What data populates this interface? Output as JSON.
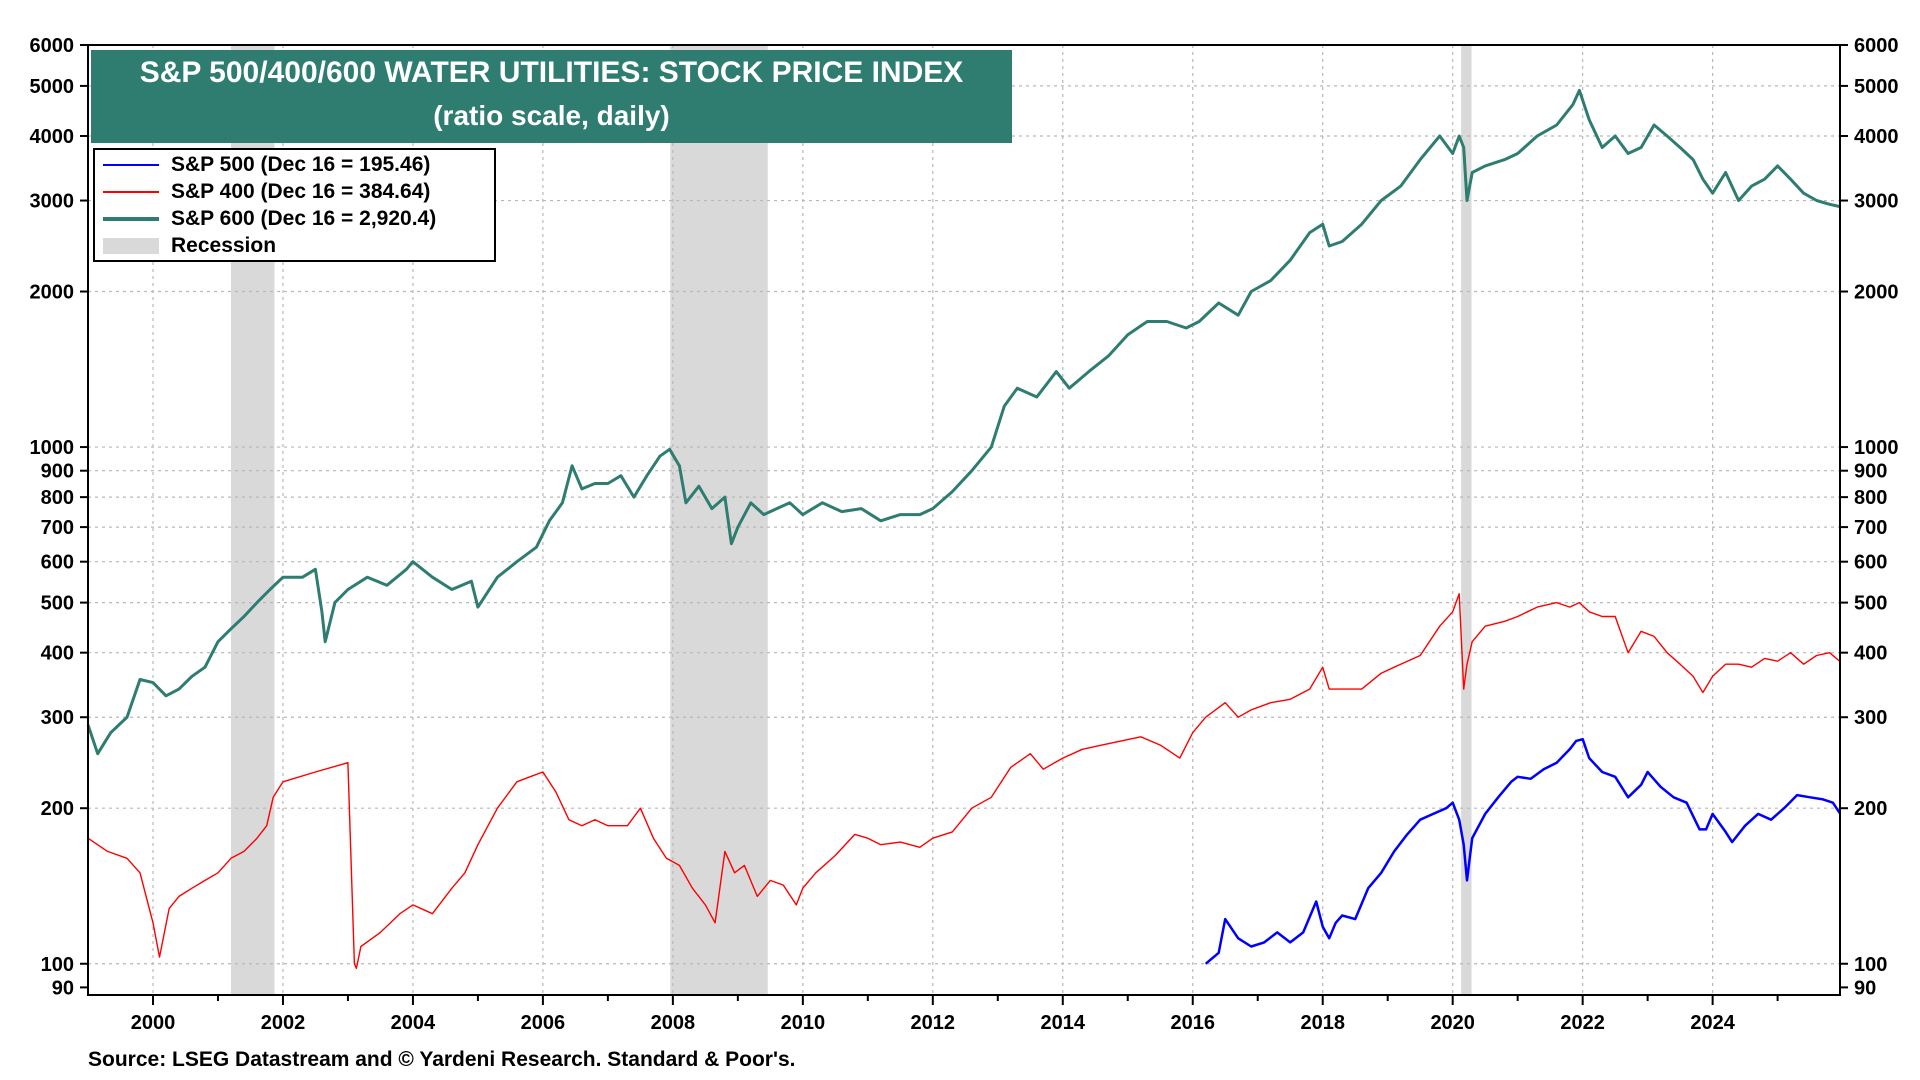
{
  "header": {
    "title": "S&P 500/400/600 WATER UTILITIES: STOCK PRICE INDEX",
    "subtitle": "(ratio scale, daily)"
  },
  "legend": {
    "items": [
      {
        "label": "S&P 500 (Dec 16 = 195.46)",
        "color": "#0000ff"
      },
      {
        "label": "S&P 400 (Dec 16 = 384.64)",
        "color": "#ff0000"
      },
      {
        "label": "S&P 600 (Dec 16 = 2,920.4)",
        "color": "#2e7d70"
      },
      {
        "label": "Recession",
        "color": "#d9d9d9"
      }
    ]
  },
  "footer": {
    "source": "Source: LSEG Datastream and © Yardeni Research. Standard & Poor's."
  },
  "chart_data": {
    "type": "line",
    "title": "S&P 500/400/600 WATER UTILITIES: STOCK PRICE INDEX",
    "subtitle": "(ratio scale, daily)",
    "y_scale": "log",
    "xlim": [
      1999.0,
      2025.96
    ],
    "ylim": [
      87,
      6000
    ],
    "x_ticks": [
      2000,
      2002,
      2004,
      2006,
      2008,
      2010,
      2012,
      2014,
      2016,
      2018,
      2020,
      2022,
      2024
    ],
    "y_ticks": [
      90,
      100,
      200,
      300,
      400,
      500,
      600,
      700,
      800,
      900,
      1000,
      2000,
      3000,
      4000,
      5000,
      6000
    ],
    "recessions": [
      [
        2001.2,
        2001.87
      ],
      [
        2007.96,
        2009.46
      ],
      [
        2020.13,
        2020.29
      ]
    ],
    "series": [
      {
        "name": "S&P 500",
        "color": "#0000ff",
        "stroke_width": 2.5,
        "x": [
          2016.2,
          2016.4,
          2016.5,
          2016.7,
          2016.9,
          2017.1,
          2017.3,
          2017.5,
          2017.7,
          2017.9,
          2018.0,
          2018.1,
          2018.2,
          2018.3,
          2018.5,
          2018.7,
          2018.9,
          2019.1,
          2019.3,
          2019.5,
          2019.7,
          2019.9,
          2020.0,
          2020.1,
          2020.17,
          2020.22,
          2020.3,
          2020.5,
          2020.7,
          2020.9,
          2021.0,
          2021.2,
          2021.4,
          2021.6,
          2021.8,
          2021.9,
          2022.0,
          2022.1,
          2022.3,
          2022.5,
          2022.7,
          2022.9,
          2023.0,
          2023.2,
          2023.4,
          2023.6,
          2023.8,
          2023.9,
          2024.0,
          2024.2,
          2024.3,
          2024.5,
          2024.7,
          2024.9,
          2025.1,
          2025.3,
          2025.5,
          2025.7,
          2025.85,
          2025.96
        ],
        "y": [
          100,
          105,
          122,
          112,
          108,
          110,
          115,
          110,
          115,
          132,
          118,
          112,
          120,
          124,
          122,
          140,
          150,
          165,
          178,
          190,
          195,
          200,
          205,
          190,
          170,
          145,
          175,
          195,
          210,
          225,
          230,
          228,
          238,
          245,
          260,
          270,
          272,
          250,
          235,
          230,
          210,
          222,
          235,
          220,
          210,
          205,
          182,
          182,
          195,
          180,
          172,
          185,
          195,
          190,
          200,
          212,
          210,
          208,
          205,
          195.46
        ]
      },
      {
        "name": "S&P 400",
        "color": "#ff0000",
        "stroke_width": 1.4,
        "x": [
          1999.0,
          1999.3,
          1999.6,
          1999.8,
          2000.0,
          2000.1,
          2000.25,
          2000.4,
          2000.6,
          2000.8,
          2001.0,
          2001.2,
          2001.4,
          2001.6,
          2001.75,
          2001.85,
          2002.0,
          2002.5,
          2003.0,
          2003.1,
          2003.13,
          2003.2,
          2003.5,
          2003.8,
          2004.0,
          2004.3,
          2004.6,
          2004.8,
          2005.0,
          2005.3,
          2005.6,
          2005.8,
          2006.0,
          2006.2,
          2006.4,
          2006.6,
          2006.8,
          2007.0,
          2007.3,
          2007.5,
          2007.7,
          2007.9,
          2008.1,
          2008.3,
          2008.5,
          2008.65,
          2008.8,
          2008.95,
          2009.1,
          2009.3,
          2009.5,
          2009.7,
          2009.9,
          2010.0,
          2010.2,
          2010.5,
          2010.8,
          2011.0,
          2011.2,
          2011.5,
          2011.8,
          2012.0,
          2012.3,
          2012.6,
          2012.9,
          2013.2,
          2013.5,
          2013.7,
          2014.0,
          2014.3,
          2014.6,
          2014.9,
          2015.2,
          2015.5,
          2015.8,
          2016.0,
          2016.2,
          2016.5,
          2016.7,
          2016.9,
          2017.2,
          2017.5,
          2017.8,
          2018.0,
          2018.1,
          2018.3,
          2018.6,
          2018.9,
          2019.2,
          2019.5,
          2019.8,
          2020.0,
          2020.1,
          2020.17,
          2020.22,
          2020.3,
          2020.5,
          2020.8,
          2021.0,
          2021.3,
          2021.6,
          2021.8,
          2021.95,
          2022.1,
          2022.3,
          2022.5,
          2022.7,
          2022.9,
          2023.1,
          2023.3,
          2023.5,
          2023.7,
          2023.85,
          2024.0,
          2024.2,
          2024.4,
          2024.6,
          2024.8,
          2025.0,
          2025.2,
          2025.4,
          2025.6,
          2025.8,
          2025.96
        ],
        "y": [
          175,
          165,
          160,
          150,
          120,
          103,
          128,
          135,
          140,
          145,
          150,
          160,
          165,
          175,
          185,
          210,
          225,
          235,
          245,
          100,
          98,
          108,
          115,
          125,
          130,
          125,
          140,
          150,
          170,
          200,
          225,
          230,
          235,
          215,
          190,
          185,
          190,
          185,
          185,
          200,
          175,
          160,
          155,
          140,
          130,
          120,
          165,
          150,
          155,
          135,
          145,
          142,
          130,
          140,
          150,
          162,
          178,
          175,
          170,
          172,
          168,
          175,
          180,
          200,
          210,
          240,
          255,
          238,
          250,
          260,
          265,
          270,
          275,
          265,
          250,
          280,
          300,
          320,
          300,
          310,
          320,
          325,
          340,
          375,
          340,
          340,
          340,
          365,
          380,
          395,
          450,
          480,
          520,
          340,
          380,
          420,
          450,
          460,
          470,
          490,
          500,
          490,
          500,
          480,
          470,
          470,
          400,
          440,
          430,
          400,
          380,
          360,
          335,
          360,
          380,
          380,
          375,
          390,
          385,
          400,
          380,
          395,
          400,
          384.64
        ]
      },
      {
        "name": "S&P 600",
        "color": "#2e7d70",
        "stroke_width": 3,
        "x": [
          1999.0,
          1999.15,
          1999.35,
          1999.6,
          1999.8,
          2000.0,
          2000.2,
          2000.4,
          2000.6,
          2000.8,
          2001.0,
          2001.2,
          2001.4,
          2001.6,
          2001.8,
          2002.0,
          2002.3,
          2002.5,
          2002.6,
          2002.65,
          2002.8,
          2003.0,
          2003.3,
          2003.6,
          2003.9,
          2004.0,
          2004.3,
          2004.6,
          2004.9,
          2005.0,
          2005.3,
          2005.6,
          2005.9,
          2006.1,
          2006.3,
          2006.45,
          2006.6,
          2006.8,
          2007.0,
          2007.2,
          2007.4,
          2007.6,
          2007.8,
          2007.95,
          2008.1,
          2008.2,
          2008.4,
          2008.6,
          2008.8,
          2008.9,
          2009.0,
          2009.2,
          2009.4,
          2009.6,
          2009.8,
          2010.0,
          2010.3,
          2010.6,
          2010.9,
          2011.2,
          2011.5,
          2011.8,
          2012.0,
          2012.3,
          2012.6,
          2012.9,
          2013.1,
          2013.3,
          2013.6,
          2013.9,
          2014.1,
          2014.4,
          2014.7,
          2015.0,
          2015.3,
          2015.6,
          2015.9,
          2016.1,
          2016.4,
          2016.7,
          2016.9,
          2017.2,
          2017.5,
          2017.8,
          2018.0,
          2018.1,
          2018.3,
          2018.6,
          2018.9,
          2019.2,
          2019.5,
          2019.8,
          2020.0,
          2020.1,
          2020.17,
          2020.22,
          2020.3,
          2020.5,
          2020.8,
          2021.0,
          2021.3,
          2021.6,
          2021.85,
          2021.95,
          2022.1,
          2022.3,
          2022.5,
          2022.7,
          2022.9,
          2023.1,
          2023.3,
          2023.5,
          2023.7,
          2023.85,
          2024.0,
          2024.2,
          2024.4,
          2024.6,
          2024.8,
          2025.0,
          2025.2,
          2025.4,
          2025.6,
          2025.8,
          2025.96
        ],
        "y": [
          290,
          255,
          280,
          300,
          355,
          350,
          330,
          340,
          360,
          375,
          420,
          445,
          470,
          500,
          530,
          560,
          560,
          580,
          480,
          420,
          500,
          530,
          560,
          540,
          580,
          600,
          560,
          530,
          550,
          490,
          560,
          600,
          640,
          720,
          780,
          920,
          830,
          850,
          850,
          880,
          800,
          880,
          960,
          990,
          920,
          780,
          840,
          760,
          800,
          650,
          700,
          780,
          740,
          760,
          780,
          740,
          780,
          750,
          760,
          720,
          740,
          740,
          760,
          820,
          900,
          1000,
          1200,
          1300,
          1250,
          1400,
          1300,
          1400,
          1500,
          1650,
          1750,
          1750,
          1700,
          1750,
          1900,
          1800,
          2000,
          2100,
          2300,
          2600,
          2700,
          2450,
          2500,
          2700,
          3000,
          3200,
          3600,
          4000,
          3700,
          4000,
          3800,
          3000,
          3400,
          3500,
          3600,
          3700,
          4000,
          4200,
          4600,
          4900,
          4300,
          3800,
          4000,
          3700,
          3800,
          4200,
          4000,
          3800,
          3600,
          3300,
          3100,
          3400,
          3000,
          3200,
          3300,
          3500,
          3300,
          3100,
          3000,
          2950,
          2920.4
        ]
      }
    ]
  }
}
